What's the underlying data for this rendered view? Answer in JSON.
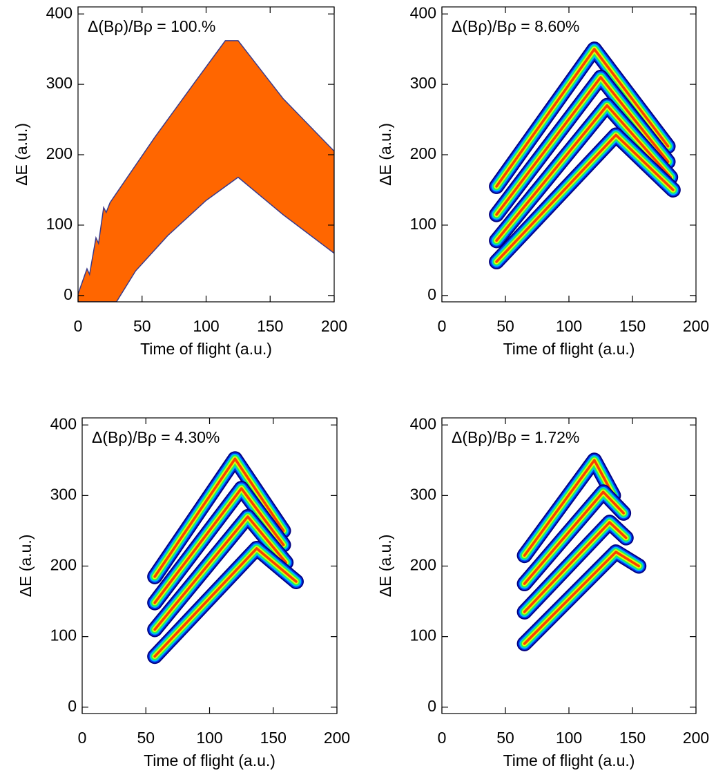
{
  "chart_data": [
    {
      "type": "area",
      "title": "Δ(Bρ)/Bρ = 100.%",
      "xlabel": "Time of flight (a.u.)",
      "ylabel": "ΔE (a.u.)",
      "xlim": [
        0,
        200
      ],
      "ylim": [
        -9,
        410
      ],
      "xticks": [
        0,
        50,
        100,
        150,
        200
      ],
      "yticks": [
        0,
        100,
        200,
        300,
        400
      ],
      "color": "#ff6600",
      "x": [
        0,
        7,
        9,
        14,
        16,
        20,
        22,
        25,
        28,
        60,
        90,
        115,
        125,
        160,
        200,
        200,
        160,
        125,
        100,
        70,
        45,
        30,
        0
      ],
      "y": [
        2,
        38,
        30,
        82,
        74,
        125,
        118,
        132,
        140,
        225,
        300,
        362,
        362,
        280,
        205,
        60,
        115,
        168,
        135,
        85,
        35,
        -9,
        -9
      ]
    },
    {
      "type": "density",
      "title": "Δ(Bρ)/Bρ = 8.60%",
      "xlabel": "Time of flight (a.u.)",
      "ylabel": "ΔE (a.u.)",
      "xlim": [
        0,
        200
      ],
      "ylim": [
        -9,
        410
      ],
      "xticks": [
        0,
        50,
        100,
        150,
        200
      ],
      "yticks": [
        0,
        100,
        200,
        300,
        400
      ],
      "colors": [
        "#000080",
        "#0040ff",
        "#00d0ff",
        "#30ff30",
        "#ffff00",
        "#ff2000"
      ],
      "series": [
        {
          "x": [
            43,
            120,
            178
          ],
          "y": [
            155,
            350,
            212
          ]
        },
        {
          "x": [
            43,
            125,
            178
          ],
          "y": [
            115,
            310,
            190
          ]
        },
        {
          "x": [
            43,
            130,
            180
          ],
          "y": [
            78,
            270,
            168
          ]
        },
        {
          "x": [
            43,
            137,
            182
          ],
          "y": [
            48,
            228,
            150
          ]
        }
      ]
    },
    {
      "type": "density",
      "title": "Δ(Bρ)/Bρ = 4.30%",
      "xlabel": "Time of flight (a.u.)",
      "ylabel": "ΔE (a.u.)",
      "xlim": [
        0,
        200
      ],
      "ylim": [
        -9,
        410
      ],
      "xticks": [
        0,
        50,
        100,
        150,
        200
      ],
      "yticks": [
        0,
        100,
        200,
        300,
        400
      ],
      "colors": [
        "#000080",
        "#0040ff",
        "#00d0ff",
        "#30ff30",
        "#ffff00",
        "#ff2000"
      ],
      "series": [
        {
          "x": [
            57,
            120,
            158
          ],
          "y": [
            185,
            352,
            250
          ]
        },
        {
          "x": [
            57,
            125,
            158
          ],
          "y": [
            148,
            310,
            230
          ]
        },
        {
          "x": [
            57,
            130,
            160
          ],
          "y": [
            110,
            270,
            205
          ]
        },
        {
          "x": [
            57,
            137,
            168
          ],
          "y": [
            72,
            225,
            178
          ]
        }
      ]
    },
    {
      "type": "density",
      "title": "Δ(Bρ)/Bρ = 1.72%",
      "xlabel": "Time of flight (a.u.)",
      "ylabel": "ΔE (a.u.)",
      "xlim": [
        0,
        200
      ],
      "ylim": [
        -9,
        410
      ],
      "xticks": [
        0,
        50,
        100,
        150,
        200
      ],
      "yticks": [
        0,
        100,
        200,
        300,
        400
      ],
      "colors": [
        "#000080",
        "#0040ff",
        "#00d0ff",
        "#30ff30",
        "#ffff00",
        "#ff2000"
      ],
      "series": [
        {
          "x": [
            65,
            120,
            135
          ],
          "y": [
            215,
            350,
            300
          ]
        },
        {
          "x": [
            65,
            127,
            143
          ],
          "y": [
            175,
            305,
            275
          ]
        },
        {
          "x": [
            65,
            132,
            145
          ],
          "y": [
            135,
            262,
            240
          ]
        },
        {
          "x": [
            65,
            137,
            155
          ],
          "y": [
            90,
            220,
            200
          ]
        }
      ]
    }
  ]
}
